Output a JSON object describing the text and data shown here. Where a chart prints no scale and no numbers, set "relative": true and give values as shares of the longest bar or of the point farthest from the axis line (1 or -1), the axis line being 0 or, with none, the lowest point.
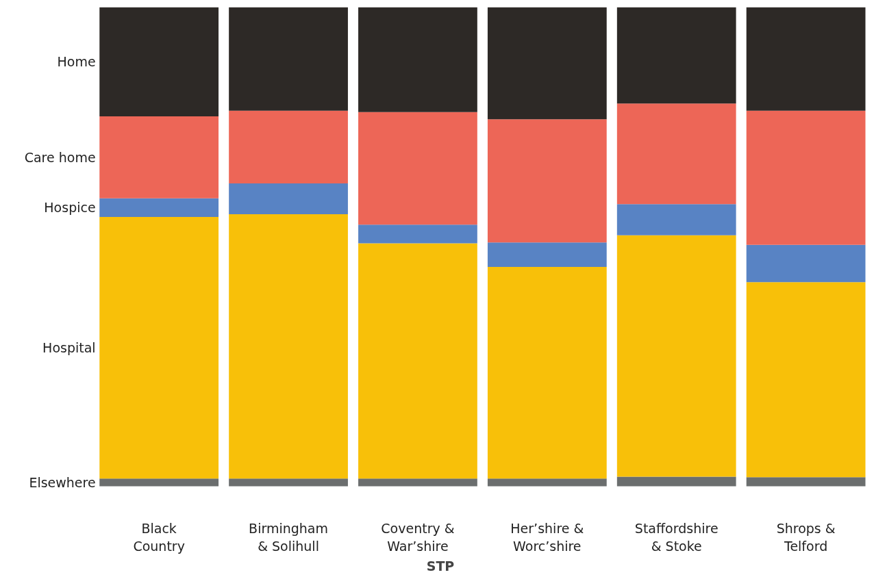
{
  "chart_data": {
    "type": "bar",
    "stacked": true,
    "relative": true,
    "xlabel": "STP",
    "categories": [
      "Black Country",
      "Birmingham & Solihull",
      "Coventry & War’shire",
      "Her’shire & Worc’shire",
      "Staffordshire & Stoke",
      "Shrops & Telford"
    ],
    "series": [
      {
        "name": "Elsewhere",
        "color": "#6b6e6e",
        "values": [
          0.016,
          0.016,
          0.016,
          0.016,
          0.02,
          0.019
        ]
      },
      {
        "name": "Hospital",
        "color": "#f8c009",
        "values": [
          0.546,
          0.552,
          0.491,
          0.442,
          0.504,
          0.407
        ]
      },
      {
        "name": "Hospice",
        "color": "#5883c4",
        "values": [
          0.039,
          0.064,
          0.039,
          0.051,
          0.065,
          0.078
        ]
      },
      {
        "name": "Care home",
        "color": "#ed6657",
        "values": [
          0.171,
          0.152,
          0.235,
          0.257,
          0.21,
          0.28
        ]
      },
      {
        "name": "Home",
        "color": "#2d2926",
        "values": [
          0.228,
          0.216,
          0.219,
          0.234,
          0.201,
          0.216
        ]
      }
    ],
    "grid": false,
    "legend": false
  }
}
